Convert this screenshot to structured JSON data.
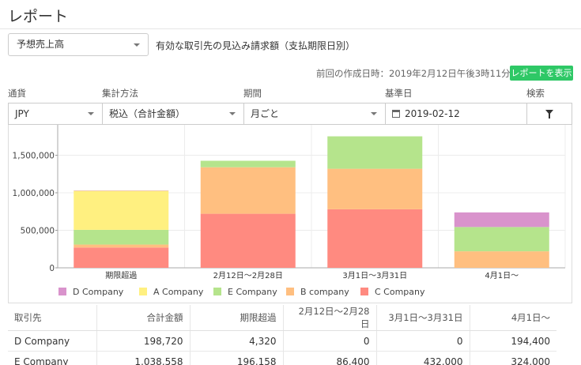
{
  "page": {
    "title": "レポート"
  },
  "report": {
    "selected": "予想売上高",
    "description": "有効な取引先の見込み請求額（支払期限日別）",
    "generated": "前回の作成日時：2019年2月12日午後3時11分",
    "show_button": "レポートを表示"
  },
  "filters": {
    "currency": {
      "label": "通貨",
      "value": "JPY"
    },
    "method": {
      "label": "集計方法",
      "value": "税込（合計金額）"
    },
    "period": {
      "label": "期間",
      "value": "月ごと"
    },
    "base_date": {
      "label": "基準日",
      "value": "2019-02-12",
      "icon": "calendar-icon"
    },
    "search": {
      "label": "検索",
      "icon": "filter-icon"
    }
  },
  "chart_data": {
    "type": "bar",
    "stacked": true,
    "categories": [
      "期限超過",
      "2月12日〜2月28日",
      "3月1日〜3月31日",
      "4月1日〜"
    ],
    "ylim": [
      0,
      1800000
    ],
    "yticks": [
      "0",
      "500,000",
      "1,000,000",
      "1,500,000"
    ],
    "ytick_values": [
      0,
      500000,
      1000000,
      1500000
    ],
    "series": [
      {
        "name": "C Company",
        "color": "#ff8a80",
        "values": [
          270000,
          720000,
          780000,
          0
        ]
      },
      {
        "name": "B company",
        "color": "#ffbf80",
        "values": [
          40000,
          620000,
          540000,
          220000
        ]
      },
      {
        "name": "E Company",
        "color": "#b5e48c",
        "values": [
          196158,
          86400,
          432000,
          324000
        ]
      },
      {
        "name": "A Company",
        "color": "#fff080",
        "values": [
          520000,
          0,
          0,
          0
        ]
      },
      {
        "name": "D Company",
        "color": "#d993cc",
        "values": [
          4320,
          0,
          0,
          194400
        ]
      }
    ],
    "legend": [
      "D Company",
      "A Company",
      "E Company",
      "B company",
      "C Company"
    ],
    "legend_position": "bottom",
    "grid": true
  },
  "table": {
    "headers": [
      "取引先",
      "合計金額",
      "期限超過",
      "2月12日〜2月28日",
      "3月1日〜3月31日",
      "4月1日〜"
    ],
    "rows": [
      [
        "D Company",
        "198,720",
        "4,320",
        "0",
        "0",
        "194,400"
      ],
      [
        "E Company",
        "1,038,558",
        "196,158",
        "86,400",
        "432,000",
        "324,000"
      ]
    ]
  }
}
